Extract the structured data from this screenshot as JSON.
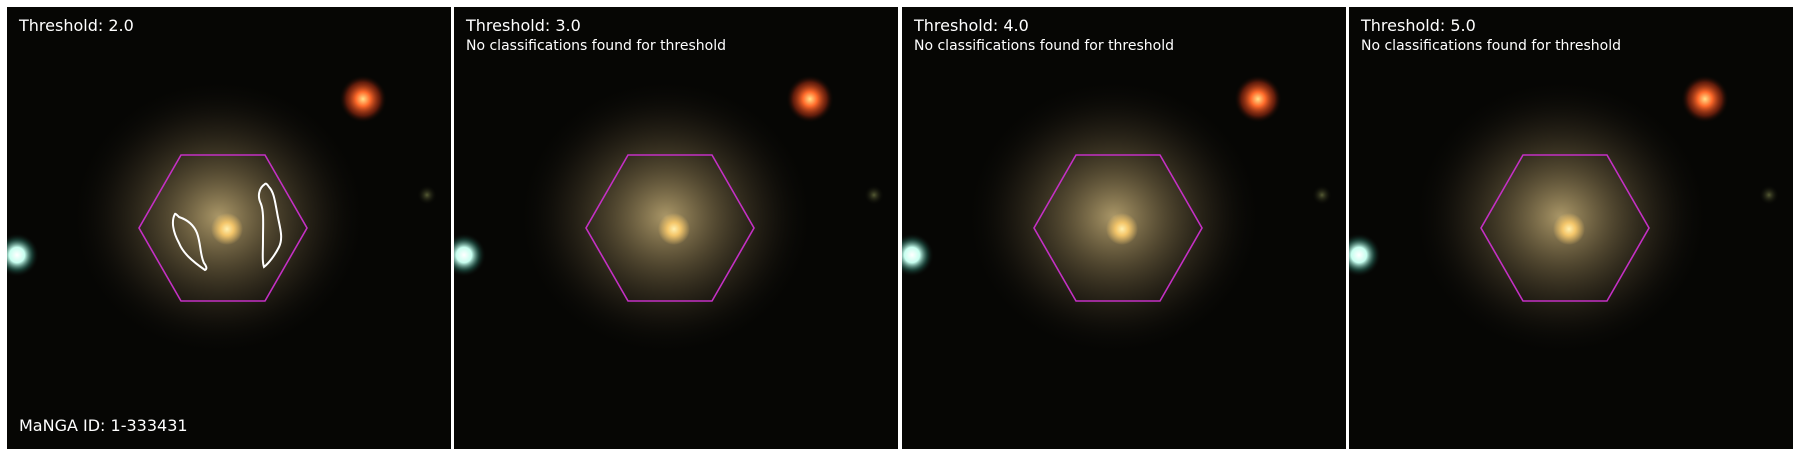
{
  "panels": [
    {
      "threshold_label": "Threshold: 2.0",
      "note": "",
      "has_contours": true
    },
    {
      "threshold_label": "Threshold: 3.0",
      "note": "No classifications found for threshold",
      "has_contours": false
    },
    {
      "threshold_label": "Threshold: 4.0",
      "note": "No classifications found for threshold",
      "has_contours": false
    },
    {
      "threshold_label": "Threshold: 5.0",
      "note": "No classifications found for threshold",
      "has_contours": false
    }
  ],
  "manga_id_label": "MaNGA ID: 1-333431",
  "colors": {
    "hexagon": "#c430c4",
    "contour": "#ffffff",
    "background": "#050503",
    "red_star": "#ff7a2a",
    "blue_star": "#dffff4",
    "galaxy_core": "#ffd27a"
  },
  "icons": {
    "hexagon": "ifu-hexagon-outline",
    "contour": "classification-contour"
  }
}
